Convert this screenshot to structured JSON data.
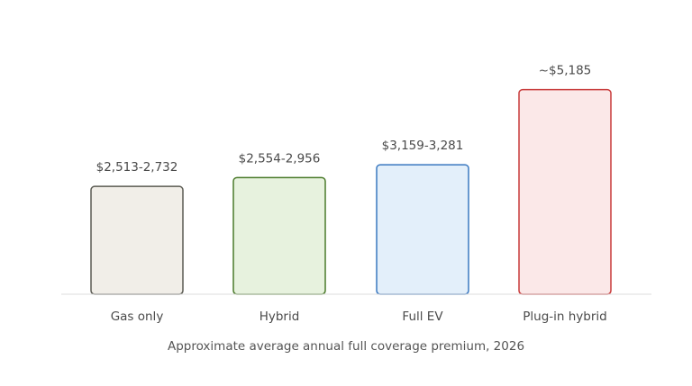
{
  "chart_data": {
    "type": "bar",
    "caption": "Approximate average annual full coverage premium, 2026",
    "ylim": [
      0,
      5700
    ],
    "grid": false,
    "categories": [
      "Gas only",
      "Hybrid",
      "Full EV",
      "Plug-in hybrid"
    ],
    "values": [
      2732,
      2956,
      3281,
      5185
    ],
    "labels": [
      "$2,513-2,732",
      "$2,554-2,956",
      "$3,159-3,281",
      "~$5,185"
    ],
    "fill_colors": [
      "#f1eee8",
      "#e7f2de",
      "#e3effa",
      "#fbe8e8"
    ],
    "stroke_colors": [
      "#5a5a52",
      "#4a7a2a",
      "#3a78c0",
      "#c83a3a"
    ],
    "baseline_color": "#dddddd"
  }
}
